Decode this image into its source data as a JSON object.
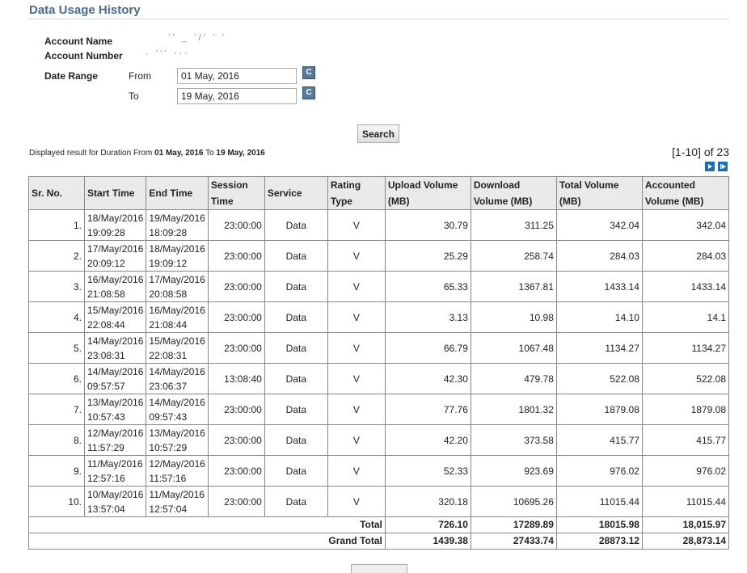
{
  "page": {
    "title": "Data Usage History"
  },
  "account": {
    "name_label": "Account Name",
    "name_value": "ʼʼ _ ʼ/ʼ ʼ ʼ",
    "number_label": "Account Number",
    "number_value": "· ʼʼʼ ‧‧‧"
  },
  "date_range": {
    "label": "Date Range",
    "from_label": "From",
    "from_value": "01 May, 2016",
    "to_label": "To",
    "to_value": "19 May, 2016",
    "calendar_icon": "calendar-icon",
    "calendar_glyph": "C"
  },
  "search": {
    "label": "Search"
  },
  "result": {
    "prefix": "Displayed result for Duration From ",
    "from": "01 May, 2016",
    "middle": " To ",
    "to": "19 May, 2016",
    "pager": "[1-10] of 23"
  },
  "table": {
    "headers": [
      "Sr. No.",
      "Start Time",
      "End Time",
      "Session Time",
      "Service",
      "Rating Type",
      "Upload Volume (MB)",
      "Download Volume (MB)",
      "Total Volume (MB)",
      "Accounted Volume (MB)"
    ],
    "rows": [
      {
        "sr": "1.",
        "start_date": "18/May/2016",
        "start_time": "19:09:28",
        "end_date": "19/May/2016",
        "end_time": "18:09:28",
        "session": "23:00:00",
        "service": "Data",
        "rating": "V",
        "upload": "30.79",
        "download": "311.25",
        "total": "342.04",
        "accounted": "342.04"
      },
      {
        "sr": "2.",
        "start_date": "17/May/2016",
        "start_time": "20:09:12",
        "end_date": "18/May/2016",
        "end_time": "19:09:12",
        "session": "23:00:00",
        "service": "Data",
        "rating": "V",
        "upload": "25.29",
        "download": "258.74",
        "total": "284.03",
        "accounted": "284.03"
      },
      {
        "sr": "3.",
        "start_date": "16/May/2016",
        "start_time": "21:08:58",
        "end_date": "17/May/2016",
        "end_time": "20:08:58",
        "session": "23:00:00",
        "service": "Data",
        "rating": "V",
        "upload": "65.33",
        "download": "1367.81",
        "total": "1433.14",
        "accounted": "1433.14"
      },
      {
        "sr": "4.",
        "start_date": "15/May/2016",
        "start_time": "22:08:44",
        "end_date": "16/May/2016",
        "end_time": "21:08:44",
        "session": "23:00:00",
        "service": "Data",
        "rating": "V",
        "upload": "3.13",
        "download": "10.98",
        "total": "14.10",
        "accounted": "14.1"
      },
      {
        "sr": "5.",
        "start_date": "14/May/2016",
        "start_time": "23:08:31",
        "end_date": "15/May/2016",
        "end_time": "22:08:31",
        "session": "23:00:00",
        "service": "Data",
        "rating": "V",
        "upload": "66.79",
        "download": "1067.48",
        "total": "1134.27",
        "accounted": "1134.27"
      },
      {
        "sr": "6.",
        "start_date": "14/May/2016",
        "start_time": "09:57:57",
        "end_date": "14/May/2016",
        "end_time": "23:06:37",
        "session": "13:08:40",
        "service": "Data",
        "rating": "V",
        "upload": "42.30",
        "download": "479.78",
        "total": "522.08",
        "accounted": "522.08"
      },
      {
        "sr": "7.",
        "start_date": "13/May/2016",
        "start_time": "10:57:43",
        "end_date": "14/May/2016",
        "end_time": "09:57:43",
        "session": "23:00:00",
        "service": "Data",
        "rating": "V",
        "upload": "77.76",
        "download": "1801.32",
        "total": "1879.08",
        "accounted": "1879.08"
      },
      {
        "sr": "8.",
        "start_date": "12/May/2016",
        "start_time": "11:57:29",
        "end_date": "13/May/2016",
        "end_time": "10:57:29",
        "session": "23:00:00",
        "service": "Data",
        "rating": "V",
        "upload": "42.20",
        "download": "373.58",
        "total": "415.77",
        "accounted": "415.77"
      },
      {
        "sr": "9.",
        "start_date": "11/May/2016",
        "start_time": "12:57:16",
        "end_date": "12/May/2016",
        "end_time": "11:57:16",
        "session": "23:00:00",
        "service": "Data",
        "rating": "V",
        "upload": "52.33",
        "download": "923.69",
        "total": "976.02",
        "accounted": "976.02"
      },
      {
        "sr": "10.",
        "start_date": "10/May/2016",
        "start_time": "13:57:04",
        "end_date": "11/May/2016",
        "end_time": "12:57:04",
        "session": "23:00:00",
        "service": "Data",
        "rating": "V",
        "upload": "320.18",
        "download": "10695.26",
        "total": "11015.44",
        "accounted": "11015.44"
      }
    ],
    "totals": [
      {
        "label": "Total",
        "upload": "726.10",
        "download": "17289.89",
        "total": "18015.98",
        "accounted": "18,015.97"
      },
      {
        "label": "Grand Total",
        "upload": "1439.38",
        "download": "27433.74",
        "total": "28873.12",
        "accounted": "28,873.14"
      }
    ]
  },
  "colors": {
    "title": "#4a6a8a",
    "header_bg": "#eaeaea",
    "pager_button": "#1f6fb0",
    "calendar_icon": "#5a7898"
  }
}
